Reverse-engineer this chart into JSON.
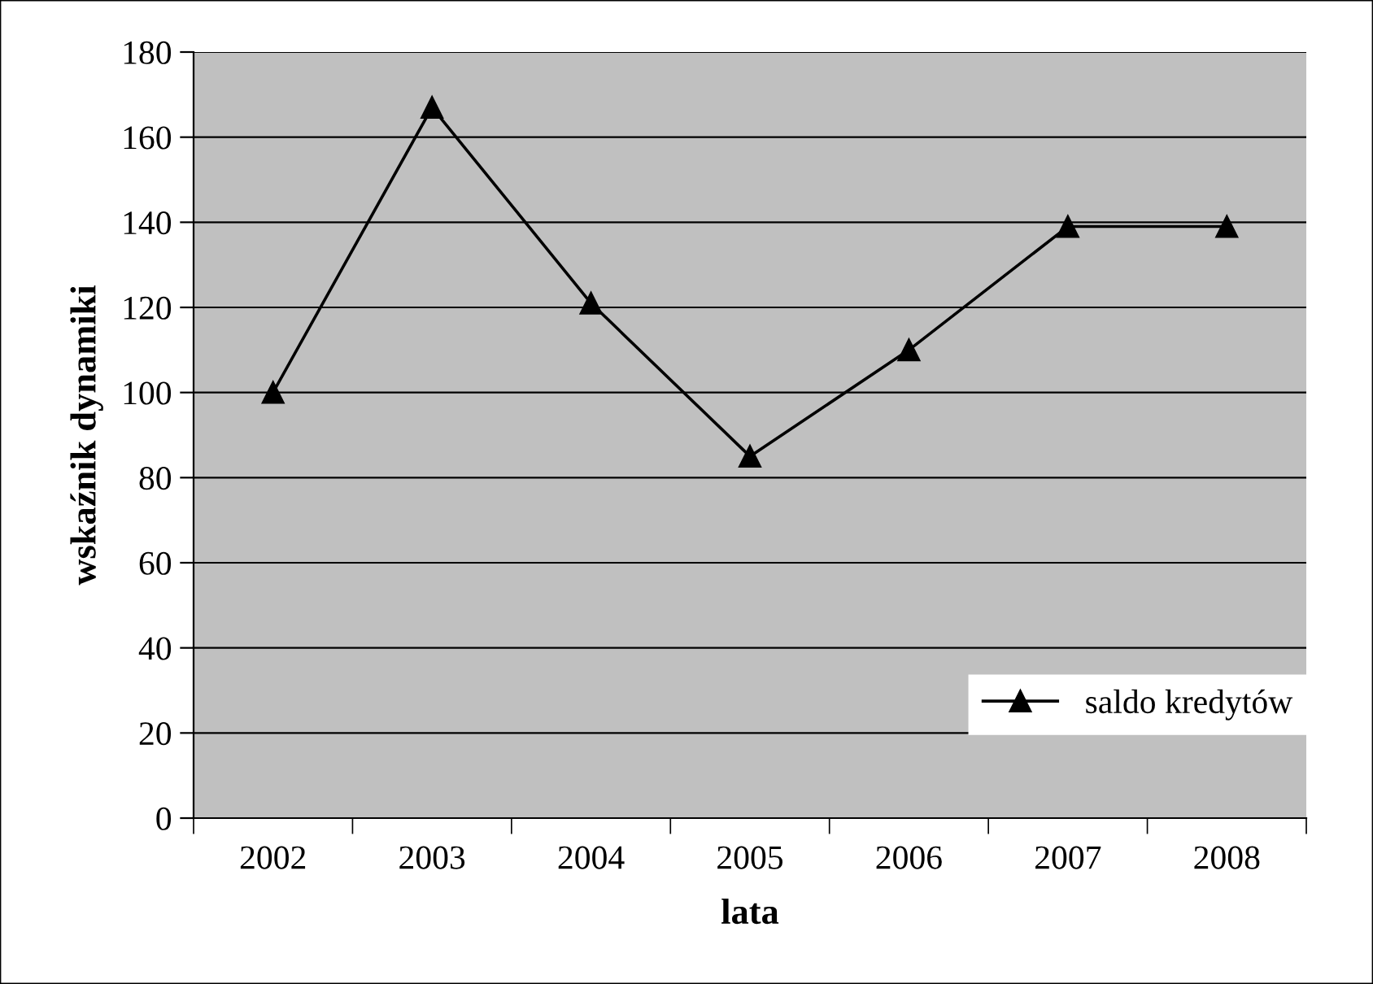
{
  "chart_data": {
    "type": "line",
    "xlabel": "lata",
    "ylabel": "wskaźnik dynamiki",
    "categories": [
      "2002",
      "2003",
      "2004",
      "2005",
      "2006",
      "2007",
      "2008"
    ],
    "series": [
      {
        "name": "saldo kredytów",
        "color": "#000000",
        "values": [
          100,
          167,
          121,
          85,
          110,
          139,
          139
        ]
      }
    ],
    "ylim": [
      0,
      180
    ],
    "yticks": [
      0,
      20,
      40,
      60,
      80,
      100,
      120,
      140,
      160,
      180
    ],
    "grid": "y",
    "legend": "bottom right",
    "marker": "triangle",
    "line_style": "solid"
  }
}
